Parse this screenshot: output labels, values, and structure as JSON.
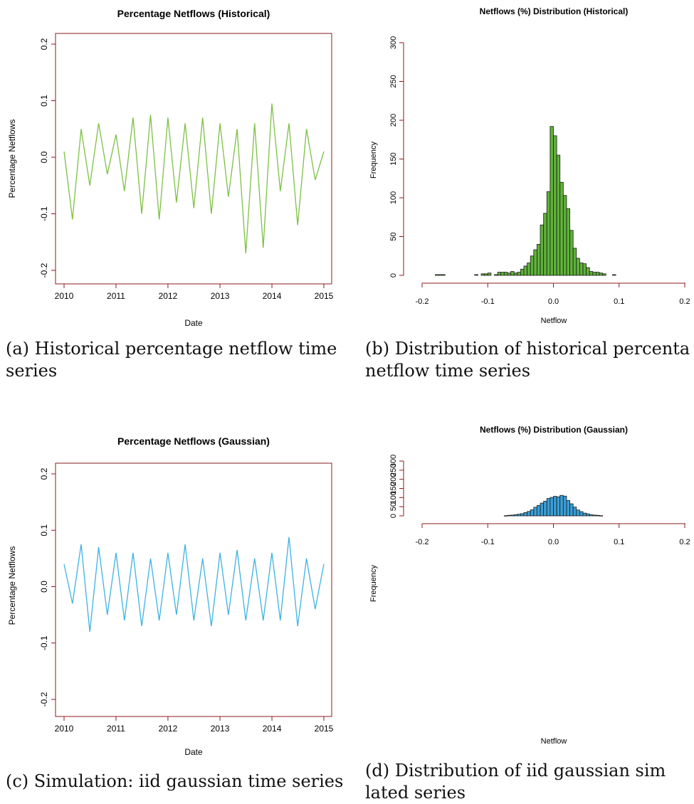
{
  "chart_data": [
    {
      "id": "a",
      "type": "line",
      "title": "Percentage Netflows (Historical)",
      "xlabel": "Date",
      "ylabel": "Percentage Netflows",
      "xlim": [
        "2010-01-01",
        "2015-01-01"
      ],
      "ylim": [
        -0.2,
        0.2
      ],
      "x_ticks": [
        "2010",
        "2011",
        "2012",
        "2013",
        "2014",
        "2015"
      ],
      "y_ticks": [
        "-0.2",
        "-0.1",
        "0.0",
        "0.1",
        "0.2"
      ],
      "grid": false,
      "color": "#7cc043",
      "series": [
        {
          "x": [
            "2010-01-01",
            "2010-03-01",
            "2010-05-01",
            "2010-07-01",
            "2010-09-01",
            "2010-11-01",
            "2011-01-01",
            "2011-03-01",
            "2011-05-01",
            "2011-07-01",
            "2011-09-01",
            "2011-11-01",
            "2012-01-01",
            "2012-03-01",
            "2012-05-01",
            "2012-07-01",
            "2012-09-01",
            "2012-11-01",
            "2013-01-01",
            "2013-03-01",
            "2013-05-01",
            "2013-07-01",
            "2013-09-01",
            "2013-11-01",
            "2014-01-01",
            "2014-03-01",
            "2014-05-01",
            "2014-07-01",
            "2014-09-01",
            "2014-11-01",
            "2015-01-01"
          ],
          "y": [
            0.01,
            -0.11,
            0.05,
            -0.05,
            0.06,
            -0.03,
            0.04,
            -0.06,
            0.07,
            -0.1,
            0.075,
            -0.11,
            0.07,
            -0.08,
            0.06,
            -0.09,
            0.07,
            -0.1,
            0.06,
            -0.07,
            0.05,
            -0.17,
            0.06,
            -0.16,
            0.095,
            -0.06,
            0.06,
            -0.12,
            0.05,
            -0.04,
            0.01
          ]
        }
      ]
    },
    {
      "id": "b",
      "type": "bar",
      "title": "Netflows (%) Distribution (Historical)",
      "xlabel": "Netflow",
      "ylabel": "Frequency",
      "xlim": [
        -0.2,
        0.2
      ],
      "ylim": [
        0,
        300
      ],
      "x_ticks": [
        "-0.2",
        "-0.1",
        "0.0",
        "0.1",
        "0.2"
      ],
      "y_ticks": [
        "0",
        "50",
        "100",
        "150",
        "200",
        "250",
        "300"
      ],
      "grid": false,
      "color": "#5fb23a",
      "bin_width": 0.005,
      "bins": [
        -0.18,
        -0.175,
        -0.17,
        -0.12,
        -0.11,
        -0.105,
        -0.1,
        -0.09,
        -0.085,
        -0.08,
        -0.075,
        -0.07,
        -0.065,
        -0.06,
        -0.055,
        -0.05,
        -0.045,
        -0.04,
        -0.035,
        -0.03,
        -0.025,
        -0.02,
        -0.015,
        -0.01,
        -0.005,
        0.0,
        0.005,
        0.01,
        0.015,
        0.02,
        0.025,
        0.03,
        0.035,
        0.04,
        0.045,
        0.05,
        0.055,
        0.06,
        0.065,
        0.07,
        0.075,
        0.09
      ],
      "values": [
        1,
        1,
        1,
        1,
        2,
        2,
        3,
        1,
        4,
        4,
        4,
        3,
        5,
        3,
        4,
        8,
        12,
        16,
        25,
        33,
        40,
        65,
        80,
        108,
        192,
        180,
        155,
        120,
        103,
        86,
        58,
        35,
        22,
        16,
        15,
        10,
        5,
        4,
        4,
        3,
        2,
        1
      ]
    },
    {
      "id": "c",
      "type": "line",
      "title": "Percentage Netflows (Gaussian)",
      "xlabel": "Date",
      "ylabel": "Percentage Netflows",
      "xlim": [
        "2010-01-01",
        "2015-01-01"
      ],
      "ylim": [
        -0.2,
        0.2
      ],
      "x_ticks": [
        "2010",
        "2011",
        "2012",
        "2013",
        "2014",
        "2015"
      ],
      "y_ticks": [
        "-0.2",
        "-0.1",
        "0.0",
        "0.1",
        "0.2"
      ],
      "grid": false,
      "color": "#3db3e3",
      "series": [
        {
          "x": [
            "2010-01-01",
            "2010-03-01",
            "2010-05-01",
            "2010-07-01",
            "2010-09-01",
            "2010-11-01",
            "2011-01-01",
            "2011-03-01",
            "2011-05-01",
            "2011-07-01",
            "2011-09-01",
            "2011-11-01",
            "2012-01-01",
            "2012-03-01",
            "2012-05-01",
            "2012-07-01",
            "2012-09-01",
            "2012-11-01",
            "2013-01-01",
            "2013-03-01",
            "2013-05-01",
            "2013-07-01",
            "2013-09-01",
            "2013-11-01",
            "2014-01-01",
            "2014-03-01",
            "2014-05-01",
            "2014-07-01",
            "2014-09-01",
            "2014-11-01",
            "2015-01-01"
          ],
          "y": [
            0.04,
            -0.03,
            0.075,
            -0.08,
            0.07,
            -0.05,
            0.06,
            -0.06,
            0.06,
            -0.07,
            0.05,
            -0.06,
            0.06,
            -0.05,
            0.075,
            -0.06,
            0.05,
            -0.07,
            0.06,
            -0.05,
            0.065,
            -0.06,
            0.05,
            -0.06,
            0.06,
            -0.06,
            0.088,
            -0.07,
            0.05,
            -0.04,
            0.04
          ]
        }
      ]
    },
    {
      "id": "d",
      "type": "bar",
      "title": "Netflows (%) Distribution (Gaussian)",
      "xlabel": "Netflow",
      "ylabel": "Frequency",
      "xlim": [
        -0.2,
        0.2
      ],
      "ylim": [
        0,
        300
      ],
      "x_ticks": [
        "-0.2",
        "-0.1",
        "0.0",
        "0.1",
        "0.2"
      ],
      "y_ticks": [
        "0",
        "50",
        "100",
        "150",
        "200",
        "250",
        "300"
      ],
      "grid": false,
      "color": "#3a9fd6",
      "bin_width": 0.005,
      "bins": [
        -0.075,
        -0.07,
        -0.065,
        -0.06,
        -0.055,
        -0.05,
        -0.045,
        -0.04,
        -0.035,
        -0.03,
        -0.025,
        -0.02,
        -0.015,
        -0.01,
        -0.005,
        0.0,
        0.005,
        0.01,
        0.015,
        0.02,
        0.025,
        0.03,
        0.035,
        0.04,
        0.045,
        0.05,
        0.055,
        0.06,
        0.065,
        0.07
      ],
      "values": [
        1,
        3,
        4,
        6,
        9,
        12,
        18,
        24,
        33,
        47,
        57,
        70,
        80,
        95,
        101,
        107,
        104,
        112,
        108,
        84,
        66,
        48,
        32,
        23,
        15,
        11,
        6,
        4,
        3,
        1
      ]
    }
  ],
  "captions": {
    "a": {
      "line1": "(a)  Historical percentage netflow time",
      "line2": "series"
    },
    "b": {
      "line1": "(b) Distribution of historical percenta",
      "line2": "netflow time series"
    },
    "c": {
      "line1": "(c) Simulation: iid gaussian time series"
    },
    "d": {
      "line1": "(d)  Distribution of iid gaussian sim",
      "line2": "lated series"
    }
  }
}
